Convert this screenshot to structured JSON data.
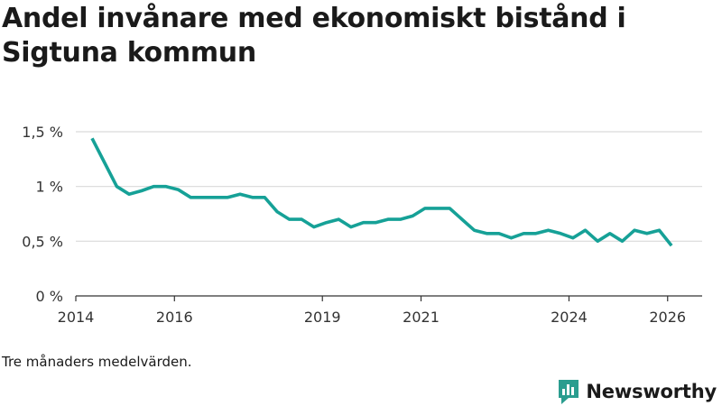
{
  "title": "Andel invånare med ekonomiskt bistånd i Sigtuna kommun",
  "note": "Tre månaders medelvärden.",
  "brand": {
    "name": "Newsworthy"
  },
  "colors": {
    "line": "#16a197",
    "grid": "#d9d9d9",
    "axis": "#333333",
    "brand": "#2a9d8f"
  },
  "chart_data": {
    "type": "line",
    "title": "Andel invånare med ekonomiskt bistånd i Sigtuna kommun",
    "xlabel": "",
    "ylabel": "",
    "xlim": [
      2014.0,
      2026.7
    ],
    "ylim": [
      0,
      1.5
    ],
    "x_ticks": [
      2014,
      2016,
      2019,
      2021,
      2024,
      2026
    ],
    "x_tick_labels": [
      "2014",
      "2016",
      "2019",
      "2021",
      "2024",
      "2026"
    ],
    "y_ticks": [
      0,
      0.5,
      1,
      1.5
    ],
    "y_tick_labels": [
      "0 %",
      "0,5 %",
      "1 %",
      "1,5 %"
    ],
    "grid": true,
    "series": [
      {
        "name": "Andel invånare med ekonomiskt bistånd",
        "x": [
          2014.33,
          2014.58,
          2014.83,
          2015.08,
          2015.33,
          2015.58,
          2015.83,
          2016.08,
          2016.33,
          2016.58,
          2016.83,
          2017.08,
          2017.33,
          2017.58,
          2017.83,
          2018.08,
          2018.33,
          2018.58,
          2018.83,
          2019.08,
          2019.33,
          2019.58,
          2019.83,
          2020.08,
          2020.33,
          2020.58,
          2020.83,
          2021.08,
          2021.33,
          2021.58,
          2021.83,
          2022.08,
          2022.33,
          2022.58,
          2022.83,
          2023.08,
          2023.33,
          2023.58,
          2023.83,
          2024.08,
          2024.33,
          2024.58,
          2024.83,
          2025.08,
          2025.33,
          2025.58,
          2025.83,
          2026.08
        ],
        "values": [
          1.44,
          1.22,
          1.0,
          0.93,
          0.96,
          1.0,
          1.0,
          0.97,
          0.9,
          0.9,
          0.9,
          0.9,
          0.93,
          0.9,
          0.9,
          0.77,
          0.7,
          0.7,
          0.63,
          0.67,
          0.7,
          0.63,
          0.67,
          0.67,
          0.7,
          0.7,
          0.73,
          0.8,
          0.8,
          0.8,
          0.7,
          0.6,
          0.57,
          0.57,
          0.53,
          0.57,
          0.57,
          0.6,
          0.57,
          0.53,
          0.6,
          0.5,
          0.57,
          0.5,
          0.6,
          0.57,
          0.6,
          0.46
        ]
      }
    ]
  }
}
